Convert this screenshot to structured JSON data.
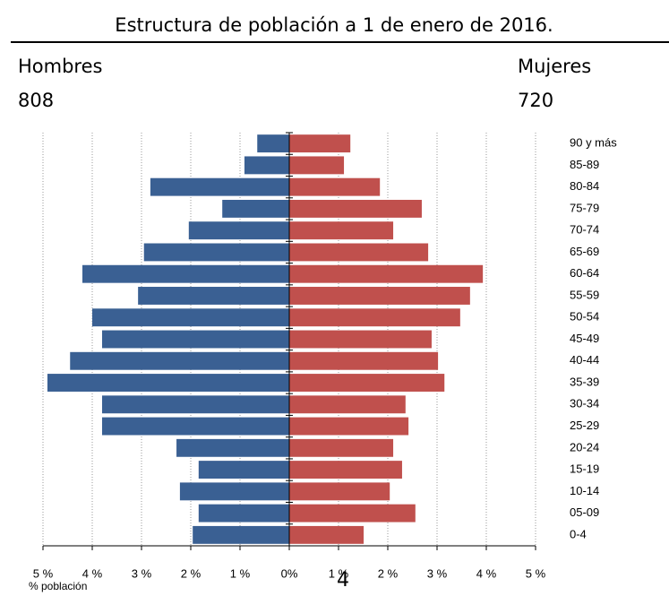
{
  "chart_data": {
    "type": "pyramid",
    "title": "Estructura de población a 1 de enero de 2016.",
    "left_label": "Hombres",
    "left_total": "808",
    "right_label": "Mujeres",
    "right_total": "720",
    "xlabel": "% población",
    "page_number": "4",
    "categories": [
      "90 y más",
      "85-89",
      "80-84",
      "75-79",
      "70-74",
      "65-69",
      "60-64",
      "55-59",
      "50-54",
      "45-49",
      "40-44",
      "35-39",
      "30-34",
      "25-29",
      "20-24",
      "15-19",
      "10-14",
      "05-09",
      "0-4"
    ],
    "series": [
      {
        "color": "#3a6093",
        "values": [
          -0.65,
          -0.91,
          -2.82,
          -1.36,
          -2.04,
          -2.95,
          -4.2,
          -3.07,
          -4.0,
          -3.8,
          -4.45,
          -4.91,
          -3.8,
          -3.8,
          -2.29,
          -1.84,
          -2.22,
          -1.84,
          -1.96
        ]
      },
      {
        "color": "#c0504d",
        "values": [
          1.24,
          1.11,
          1.84,
          2.69,
          2.11,
          2.82,
          3.93,
          3.67,
          3.47,
          2.89,
          3.02,
          3.15,
          2.36,
          2.42,
          2.11,
          2.29,
          2.04,
          2.56,
          1.51
        ]
      }
    ],
    "xlim": [
      -5,
      5
    ],
    "xticks": [
      {
        "value": -5,
        "label": "5 %"
      },
      {
        "value": -4,
        "label": "4 %"
      },
      {
        "value": -3,
        "label": "3 %"
      },
      {
        "value": -2,
        "label": "2 %"
      },
      {
        "value": -1,
        "label": "1 %"
      },
      {
        "value": 0,
        "label": "0%"
      },
      {
        "value": 1,
        "label": "1 %"
      },
      {
        "value": 2,
        "label": "2 %"
      },
      {
        "value": 3,
        "label": "3 %"
      },
      {
        "value": 4,
        "label": "4 %"
      },
      {
        "value": 5,
        "label": "5 %"
      }
    ],
    "grid": true
  }
}
